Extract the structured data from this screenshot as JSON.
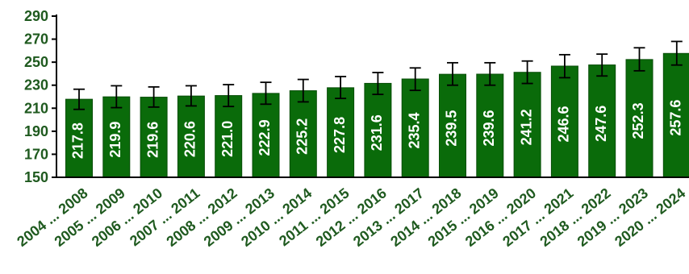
{
  "chart_data": {
    "type": "bar",
    "categories": [
      "2004 ... 2008",
      "2005 ... 2009",
      "2006 ... 2010",
      "2007 ... 2011",
      "2008 ... 2012",
      "2009 ... 2013",
      "2010 ... 2014",
      "2011 ... 2015",
      "2012 ... 2016",
      "2013 ... 2017",
      "2014 ... 2018",
      "2015 ... 2019",
      "2016 ... 2020",
      "2017 ... 2021",
      "2018 ... 2022",
      "2019 ... 2023",
      "2020 ... 2024"
    ],
    "values": [
      217.8,
      219.9,
      219.6,
      220.6,
      221.0,
      222.9,
      225.2,
      227.8,
      231.6,
      235.4,
      239.5,
      239.6,
      241.2,
      246.6,
      247.6,
      252.3,
      257.6
    ],
    "data_labels": [
      "217.8",
      "219.9",
      "219.6",
      "220.6",
      "221.0",
      "222.9",
      "225.2",
      "227.8",
      "231.6",
      "235.4",
      "239.5",
      "239.6",
      "241.2",
      "246.6",
      "247.6",
      "252.3",
      "257.6"
    ],
    "error_upper": [
      226.5,
      229.5,
      228.5,
      229.5,
      230.5,
      232.5,
      235,
      237.5,
      241,
      245,
      249.5,
      249.5,
      251,
      256.5,
      257,
      262.5,
      268
    ],
    "error_lower": [
      209,
      210.5,
      211,
      212,
      211.5,
      213.5,
      215.5,
      218.5,
      222,
      225.5,
      230,
      230,
      231.5,
      236.5,
      238,
      242.5,
      247.5
    ],
    "yticks": [
      "150",
      "170",
      "190",
      "210",
      "230",
      "250",
      "270",
      "290"
    ],
    "ylim": [
      150,
      290
    ],
    "title": "",
    "xlabel": "",
    "ylabel": "",
    "grid": false,
    "colors": {
      "bar_fill": "#0a6b0a",
      "bar_stroke": "#084d08",
      "axis": "#000000",
      "tick_text": "#1f5a1f",
      "label_text": "#ffffff"
    }
  }
}
